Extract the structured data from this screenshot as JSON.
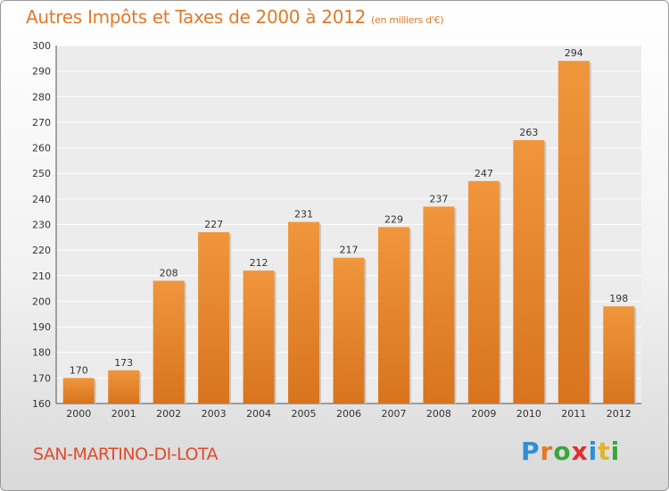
{
  "title": "Autres Impôts et Taxes de 2000 à 2012",
  "subtitle": "(en milliers d'€)",
  "commune": "SAN-MARTINO-DI-LOTA",
  "brand": {
    "letters": [
      "P",
      "r",
      "o",
      "x",
      "i",
      "t",
      "i"
    ],
    "colors": [
      "#2f8fd6",
      "#e07a2b",
      "#3aa63a",
      "#e02d2d",
      "#2f8fd6",
      "#e0b42b",
      "#3aa63a"
    ]
  },
  "colors": {
    "bar": "#f0963c",
    "bar_dark": "#d8741e",
    "title": "#e07a2b",
    "commune": "#e04a2b"
  },
  "chart_data": {
    "type": "bar",
    "categories": [
      "2000",
      "2001",
      "2002",
      "2003",
      "2004",
      "2005",
      "2006",
      "2007",
      "2008",
      "2009",
      "2010",
      "2011",
      "2012"
    ],
    "values": [
      170,
      173,
      208,
      227,
      212,
      231,
      217,
      229,
      237,
      247,
      263,
      294,
      198
    ],
    "ylim": [
      160,
      300
    ],
    "yticks": [
      160,
      170,
      180,
      190,
      200,
      210,
      220,
      230,
      240,
      250,
      260,
      270,
      280,
      290,
      300
    ],
    "grid": true,
    "title": "Autres Impôts et Taxes de 2000 à 2012",
    "xlabel": "",
    "ylabel": ""
  }
}
